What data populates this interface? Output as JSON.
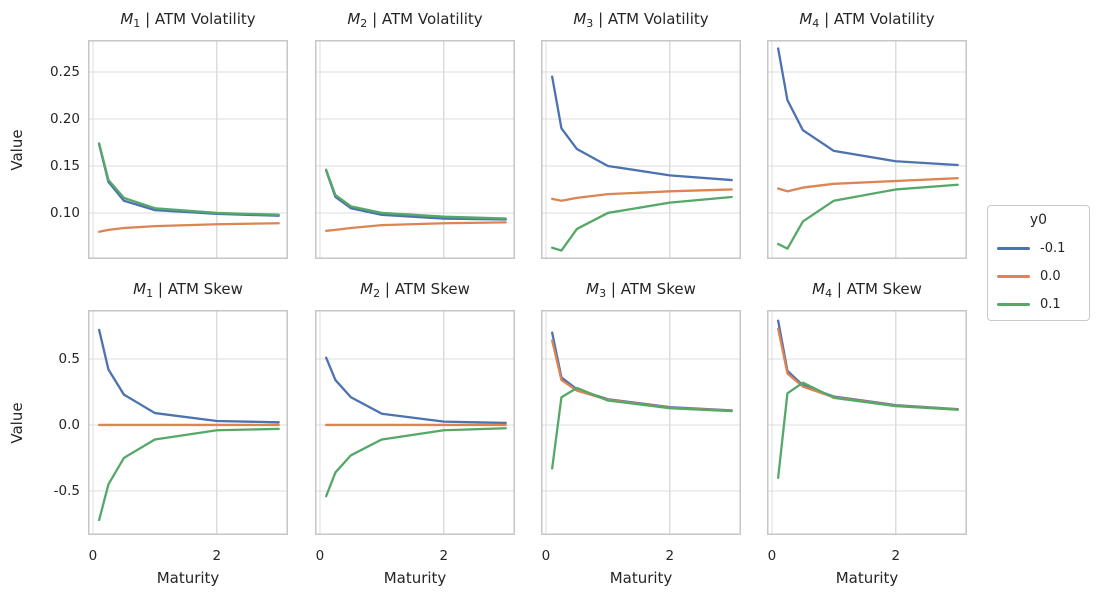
{
  "colors": {
    "grid": "#DCDCDC",
    "spine": "#C6C6C6",
    "text": "#262626",
    "background": "#FFFFFF"
  },
  "chart_data": {
    "type": "line",
    "grid": true,
    "xlabel": "Maturity",
    "ylabel": "Value",
    "x": [
      0.1,
      0.25,
      0.5,
      1.0,
      2.0,
      3.0
    ],
    "xlim": [
      -0.08,
      3.15
    ],
    "xticks": [
      {
        "value": 0,
        "label": "0"
      },
      {
        "value": 2,
        "label": "2"
      }
    ],
    "series_colors": {
      "-0.1": "#4C72B0",
      "0.0": "#DD8452",
      "0.1": "#55A868"
    },
    "legend": {
      "title": "y0",
      "position": "right",
      "entries": [
        {
          "label": "-0.1",
          "color": "#4C72B0"
        },
        {
          "label": "0.0",
          "color": "#DD8452"
        },
        {
          "label": "0.1",
          "color": "#55A868"
        }
      ]
    },
    "rows": [
      {
        "measure": "ATM Volatility",
        "ylim": [
          0.051,
          0.284
        ],
        "yticks": [
          {
            "value": 0.25,
            "label": "0.25"
          },
          {
            "value": 0.2,
            "label": "0.20"
          },
          {
            "value": 0.15,
            "label": "0.15"
          },
          {
            "value": 0.1,
            "label": "0.10"
          }
        ]
      },
      {
        "measure": "ATM Skew",
        "ylim": [
          -0.834,
          0.871
        ],
        "yticks": [
          {
            "value": 0.5,
            "label": "0.5"
          },
          {
            "value": 0.0,
            "label": "0.0"
          },
          {
            "value": -0.5,
            "label": "-0.5"
          }
        ]
      }
    ],
    "subplots": [
      {
        "row": 0,
        "col": 0,
        "title": {
          "model": "M",
          "sub": "1",
          "rest": " | ATM Volatility"
        },
        "series": [
          {
            "y0": "-0.1",
            "values": [
              0.173,
              0.133,
              0.113,
              0.103,
              0.099,
              0.097
            ]
          },
          {
            "y0": "0.0",
            "values": [
              0.08,
              0.082,
              0.084,
              0.086,
              0.088,
              0.089
            ]
          },
          {
            "y0": "0.1",
            "values": [
              0.174,
              0.135,
              0.116,
              0.105,
              0.1,
              0.098
            ]
          }
        ]
      },
      {
        "row": 0,
        "col": 1,
        "title": {
          "model": "M",
          "sub": "2",
          "rest": " | ATM Volatility"
        },
        "series": [
          {
            "y0": "-0.1",
            "values": [
              0.145,
              0.117,
              0.105,
              0.098,
              0.094,
              0.093
            ]
          },
          {
            "y0": "0.0",
            "values": [
              0.081,
              0.082,
              0.084,
              0.087,
              0.089,
              0.09
            ]
          },
          {
            "y0": "0.1",
            "values": [
              0.146,
              0.119,
              0.107,
              0.1,
              0.096,
              0.094
            ]
          }
        ]
      },
      {
        "row": 0,
        "col": 2,
        "title": {
          "model": "M",
          "sub": "3",
          "rest": " | ATM Volatility"
        },
        "series": [
          {
            "y0": "-0.1",
            "values": [
              0.245,
              0.19,
              0.168,
              0.15,
              0.14,
              0.135
            ]
          },
          {
            "y0": "0.0",
            "values": [
              0.115,
              0.113,
              0.116,
              0.12,
              0.123,
              0.125
            ]
          },
          {
            "y0": "0.1",
            "values": [
              0.063,
              0.06,
              0.083,
              0.1,
              0.111,
              0.117
            ]
          }
        ]
      },
      {
        "row": 0,
        "col": 3,
        "title": {
          "model": "M",
          "sub": "4",
          "rest": " | ATM Volatility"
        },
        "series": [
          {
            "y0": "-0.1",
            "values": [
              0.275,
              0.22,
              0.188,
              0.166,
              0.155,
              0.151
            ]
          },
          {
            "y0": "0.0",
            "values": [
              0.126,
              0.123,
              0.127,
              0.131,
              0.134,
              0.137
            ]
          },
          {
            "y0": "0.1",
            "values": [
              0.067,
              0.062,
              0.091,
              0.113,
              0.125,
              0.13
            ]
          }
        ]
      },
      {
        "row": 1,
        "col": 0,
        "title": {
          "model": "M",
          "sub": "1",
          "rest": " | ATM Skew"
        },
        "series": [
          {
            "y0": "-0.1",
            "values": [
              0.72,
              0.42,
              0.23,
              0.09,
              0.03,
              0.02
            ]
          },
          {
            "y0": "0.0",
            "values": [
              0.0,
              0.0,
              0.0,
              0.0,
              0.0,
              0.0
            ]
          },
          {
            "y0": "0.1",
            "values": [
              -0.72,
              -0.45,
              -0.25,
              -0.11,
              -0.04,
              -0.03
            ]
          }
        ]
      },
      {
        "row": 1,
        "col": 1,
        "title": {
          "model": "M",
          "sub": "2",
          "rest": " | ATM Skew"
        },
        "series": [
          {
            "y0": "-0.1",
            "values": [
              0.51,
              0.34,
              0.21,
              0.085,
              0.025,
              0.015
            ]
          },
          {
            "y0": "0.0",
            "values": [
              0.0,
              0.0,
              0.0,
              0.0,
              0.0,
              0.0
            ]
          },
          {
            "y0": "0.1",
            "values": [
              -0.54,
              -0.36,
              -0.23,
              -0.11,
              -0.04,
              -0.025
            ]
          }
        ]
      },
      {
        "row": 1,
        "col": 2,
        "title": {
          "model": "M",
          "sub": "3",
          "rest": " | ATM Skew"
        },
        "series": [
          {
            "y0": "-0.1",
            "values": [
              0.7,
              0.36,
              0.27,
              0.195,
              0.135,
              0.11
            ]
          },
          {
            "y0": "0.0",
            "values": [
              0.64,
              0.34,
              0.26,
              0.19,
              0.13,
              0.107
            ]
          },
          {
            "y0": "0.1",
            "values": [
              -0.33,
              0.21,
              0.28,
              0.185,
              0.127,
              0.105
            ]
          }
        ]
      },
      {
        "row": 1,
        "col": 3,
        "title": {
          "model": "M",
          "sub": "4",
          "rest": " | ATM Skew"
        },
        "series": [
          {
            "y0": "-0.1",
            "values": [
              0.79,
              0.41,
              0.3,
              0.215,
              0.15,
              0.12
            ]
          },
          {
            "y0": "0.0",
            "values": [
              0.73,
              0.39,
              0.29,
              0.21,
              0.146,
              0.117
            ]
          },
          {
            "y0": "0.1",
            "values": [
              -0.4,
              0.24,
              0.32,
              0.205,
              0.143,
              0.115
            ]
          }
        ]
      }
    ]
  }
}
